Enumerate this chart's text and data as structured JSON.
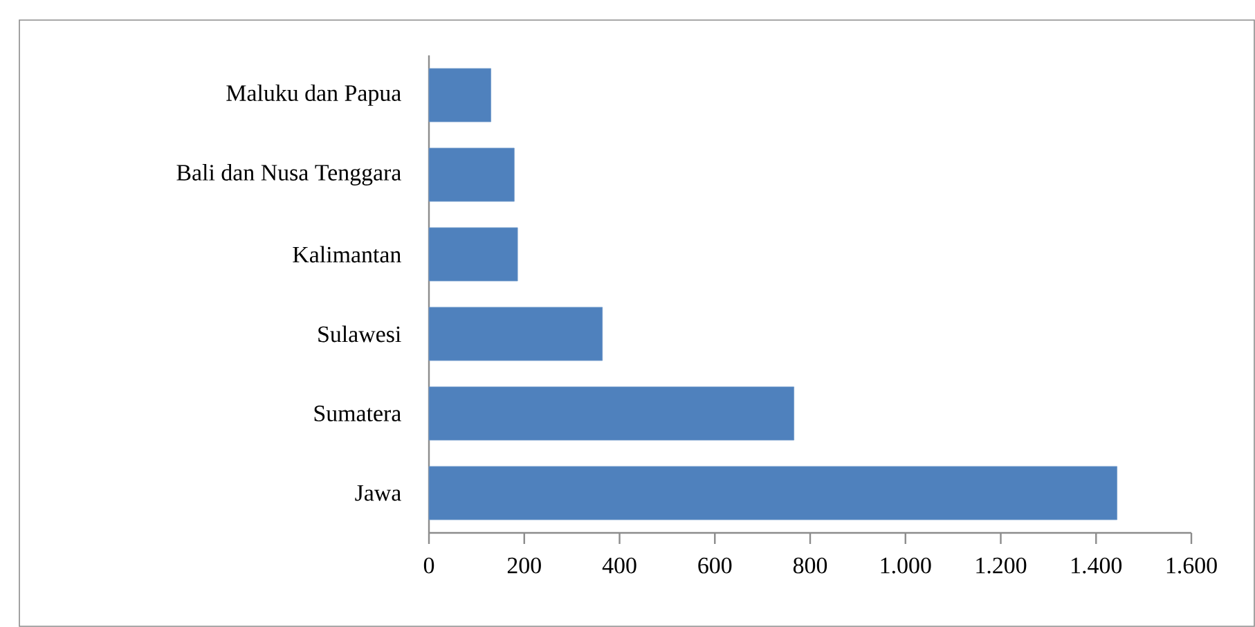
{
  "chart_data": {
    "type": "bar",
    "orientation": "horizontal",
    "categories": [
      "Maluku dan Papua",
      "Bali dan Nusa Tenggara",
      "Kalimantan",
      "Sulawesi",
      "Sumatera",
      "Jawa"
    ],
    "values": [
      130,
      179,
      186,
      364,
      766,
      1444
    ],
    "color": "#4f81bd",
    "xlim": [
      0,
      1600
    ],
    "xticks": [
      0,
      200,
      400,
      600,
      800,
      {
        "value": 1000,
        "label": "1.000"
      },
      {
        "value": 1200,
        "label": "1.200"
      },
      {
        "value": 1400,
        "label": "1.400"
      },
      {
        "value": 1600,
        "label": "1.600"
      }
    ]
  }
}
